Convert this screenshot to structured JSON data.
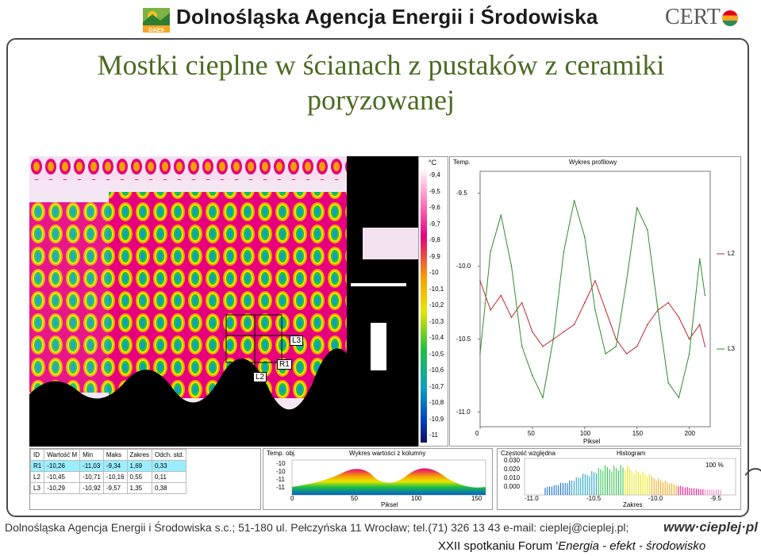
{
  "header": {
    "org_name": "Dolnośląska Agencja Energii i Środowiska",
    "daes_logo_label": "DAES",
    "cert_logo_label": "CERT"
  },
  "title": {
    "line1": "Mostki cieplne w ścianach z pustaków  z ceramiki",
    "line2": "poryzowanej"
  },
  "thermogram": {
    "markers": [
      "L3",
      "R1",
      "L2"
    ]
  },
  "scale": {
    "unit": "°C",
    "ticks": [
      "-9,4",
      "-9,5",
      "-9,6",
      "-9,7",
      "-9,8",
      "-9,9",
      "-10",
      "-10,1",
      "-10,2",
      "-10,3",
      "-10,4",
      "-10,5",
      "-10,6",
      "-10,7",
      "-10,8",
      "-10,9",
      "-11"
    ]
  },
  "profile_chart": {
    "y_label": "Temp.",
    "title": "Wykres profilowy",
    "x_label": "Piksel",
    "y_ticks": [
      "-9.5",
      "-10.0",
      "-10.5",
      "-11.0"
    ],
    "x_ticks": [
      "0",
      "50",
      "100",
      "150",
      "200"
    ],
    "legend": [
      "L2",
      "L3"
    ],
    "colors": {
      "L2": "#c0262a",
      "L3": "#2e8b2e"
    }
  },
  "chart_data": {
    "type": "line",
    "title": "Wykres profilowy",
    "xlabel": "Piksel",
    "ylabel": "Temp.",
    "xlim": [
      0,
      220
    ],
    "ylim": [
      -11.1,
      -9.35
    ],
    "series": [
      {
        "name": "L2",
        "x": [
          0,
          10,
          20,
          30,
          40,
          50,
          60,
          70,
          80,
          90,
          100,
          110,
          120,
          130,
          140,
          150,
          160,
          170,
          180,
          190,
          200,
          210,
          215
        ],
        "y": [
          -10.1,
          -10.3,
          -10.2,
          -10.35,
          -10.25,
          -10.45,
          -10.55,
          -10.5,
          -10.45,
          -10.4,
          -10.25,
          -10.1,
          -10.3,
          -10.5,
          -10.6,
          -10.55,
          -10.4,
          -10.3,
          -10.25,
          -10.35,
          -10.5,
          -10.4,
          -10.55
        ]
      },
      {
        "name": "L3",
        "x": [
          0,
          10,
          20,
          30,
          40,
          50,
          60,
          70,
          80,
          90,
          100,
          110,
          120,
          130,
          140,
          150,
          160,
          170,
          180,
          190,
          200,
          210,
          215
        ],
        "y": [
          -10.6,
          -9.9,
          -9.65,
          -10.0,
          -10.55,
          -10.75,
          -10.9,
          -10.5,
          -9.9,
          -9.55,
          -9.8,
          -10.3,
          -10.6,
          -10.55,
          -10.1,
          -9.6,
          -9.75,
          -10.3,
          -10.8,
          -10.9,
          -10.6,
          -9.95,
          -10.2
        ]
      }
    ]
  },
  "stats_table": {
    "headers": [
      "ID",
      "Wartość M",
      "Min",
      "Maks",
      "Zakres",
      "Odch. std."
    ],
    "rows": [
      [
        "R1",
        "-10,26",
        "-11,03",
        "-9,34",
        "1,69",
        "0,33"
      ],
      [
        "L2",
        "-10,45",
        "-10,71",
        "-10,16",
        "0,55",
        "0,11"
      ],
      [
        "L3",
        "-10,29",
        "-10,92",
        "-9,57",
        "1,35",
        "0,38"
      ]
    ]
  },
  "column_chart": {
    "y_label": "Temp. obj.",
    "title": "Wykres wartości z kolumny",
    "x_label": "Piksel",
    "y_ticks": [
      "-10",
      "-10",
      "-11",
      "-11"
    ],
    "x_ticks": [
      "0",
      "50",
      "100",
      "150"
    ]
  },
  "histogram": {
    "y_label": "Częstość względna",
    "title": "Histogram",
    "x_label": "Zakres",
    "y_ticks": [
      "0.030",
      "0.020",
      "0.010",
      "0.000"
    ],
    "x_ticks": [
      "-11.0",
      "-10.5",
      "-10.0",
      "-9.5"
    ],
    "percent_label": "100 %"
  },
  "footer": {
    "address": "Dolnośląska Agencja Energii i Środowiska s.c.; 51-180 ul. Pełczyńska 11 Wrocław; tel.(71) 326 13 43 e-mail: cieplej@cieplej.pl;",
    "website": "www·cieplej·pl",
    "forum_prefix": "XXII spotkaniu Forum '",
    "forum_italic": "Energia - efekt - środowisko"
  }
}
